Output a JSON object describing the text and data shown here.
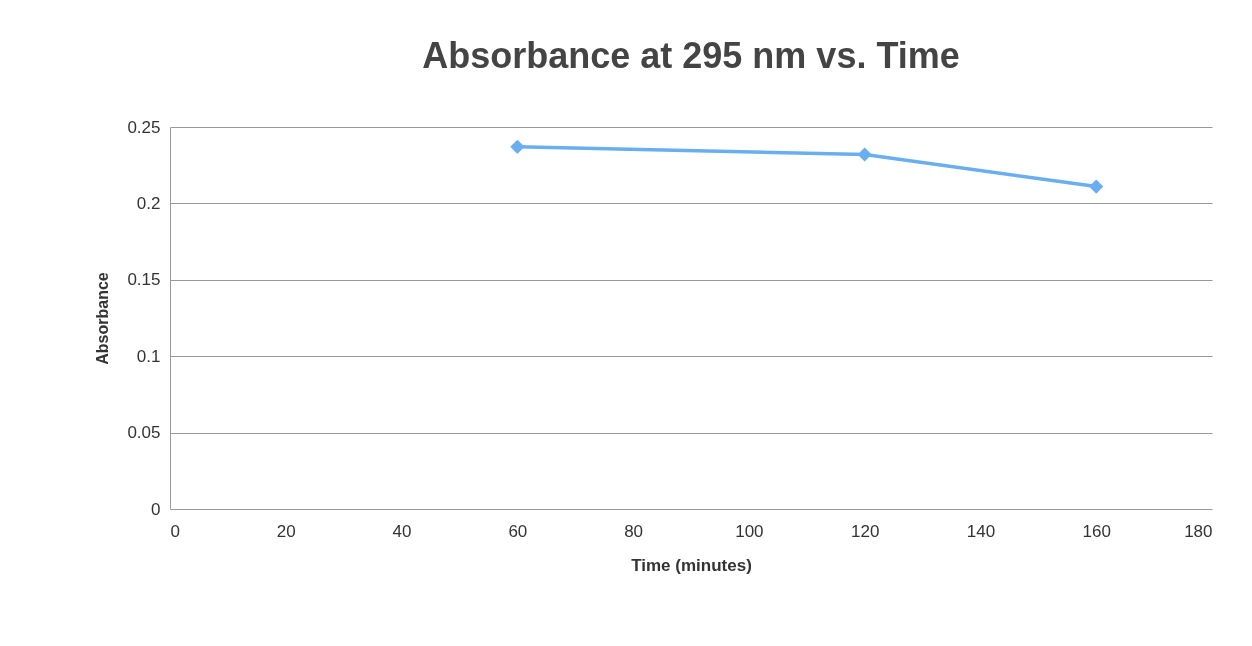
{
  "chart_data": {
    "type": "line",
    "title": "Absorbance at 295 nm vs. Time",
    "xlabel": "Time (minutes)",
    "ylabel": "Absorbance",
    "x": [
      60,
      120,
      160
    ],
    "series": [
      {
        "color": "#6aaef0",
        "values": [
          0.237,
          0.232,
          0.211
        ]
      }
    ],
    "xlim": [
      0,
      180
    ],
    "xticks": [
      0,
      20,
      40,
      60,
      80,
      100,
      120,
      140,
      160,
      180
    ],
    "ylim": [
      0,
      0.25
    ],
    "yticks": [
      0,
      0.05,
      0.1,
      0.15,
      0.2,
      0.25
    ],
    "grid": "y",
    "marker": "diamond",
    "line_style": "solid",
    "legend": false
  }
}
